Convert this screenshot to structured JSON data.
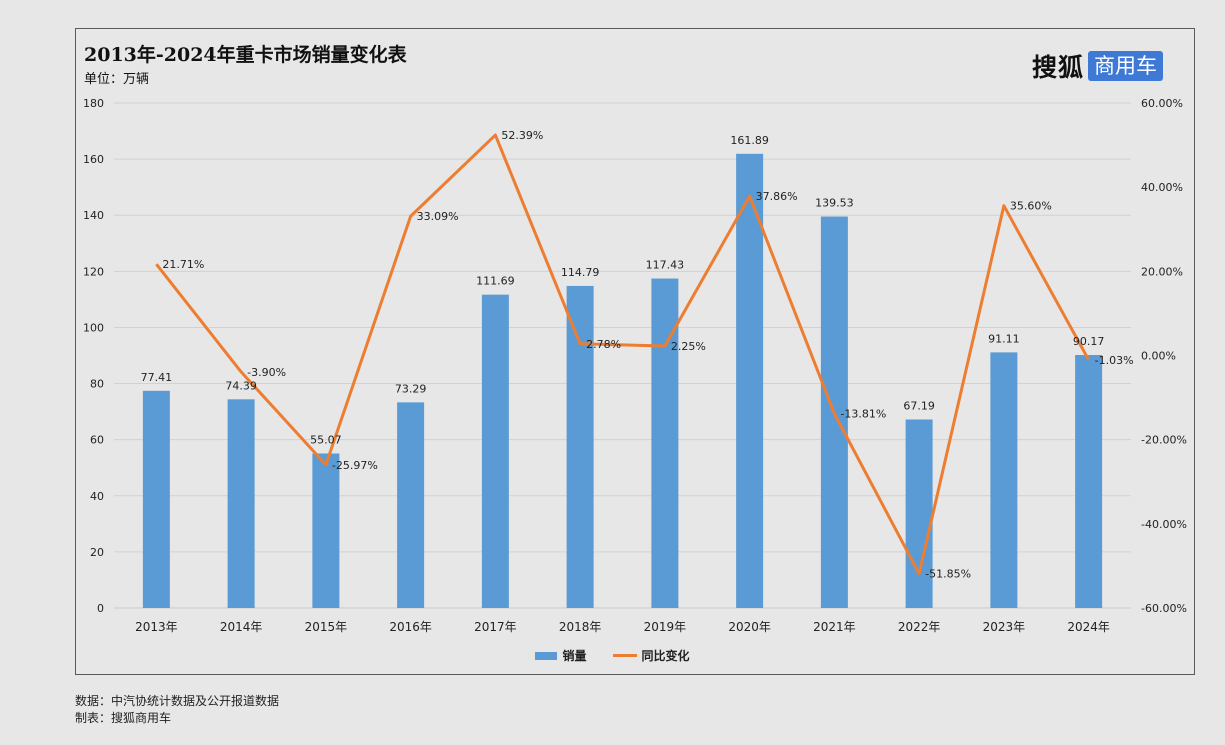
{
  "header": {
    "title": "2013年-2024年重卡市场销量变化表",
    "unit": "单位：万辆"
  },
  "logo": {
    "main": "搜狐",
    "box": "商用车"
  },
  "footer": {
    "source": "数据：中汽协统计数据及公开报道数据",
    "maker": "制表：搜狐商用车"
  },
  "chart_data": {
    "type": "bar",
    "categories": [
      "2013年",
      "2014年",
      "2015年",
      "2016年",
      "2017年",
      "2018年",
      "2019年",
      "2020年",
      "2021年",
      "2022年",
      "2023年",
      "2024年"
    ],
    "series": [
      {
        "name": "销量",
        "type": "bar",
        "axis": "left",
        "color": "#5b9bd5",
        "values": [
          77.41,
          74.39,
          55.07,
          73.29,
          111.69,
          114.79,
          117.43,
          161.89,
          139.53,
          67.19,
          91.11,
          90.17
        ],
        "labels": [
          "77.41",
          "74.39",
          "55.07",
          "73.29",
          "111.69",
          "114.79",
          "117.43",
          "161.89",
          "139.53",
          "67.19",
          "91.11",
          "90.17"
        ]
      },
      {
        "name": "同比变化",
        "type": "line",
        "axis": "right",
        "color": "#ed7d31",
        "values": [
          21.71,
          -3.9,
          -25.97,
          33.09,
          52.39,
          2.78,
          2.25,
          37.86,
          -13.81,
          -51.85,
          35.6,
          -1.03
        ],
        "labels": [
          "21.71%",
          "-3.90%",
          "-25.97%",
          "33.09%",
          "52.39%",
          "2.78%",
          "2.25%",
          "37.86%",
          "-13.81%",
          "-51.85%",
          "35.60%",
          "-1.03%"
        ]
      }
    ],
    "ylim_left": [
      0,
      180
    ],
    "yticks_left": [
      "0",
      "20",
      "40",
      "60",
      "80",
      "100",
      "120",
      "140",
      "160",
      "180"
    ],
    "ylim_right": [
      -60,
      60
    ],
    "yticks_right": [
      "-60.00%",
      "-40.00%",
      "-20.00%",
      "0.00%",
      "20.00%",
      "40.00%",
      "60.00%"
    ],
    "grid": true,
    "legend": "bottom-center"
  }
}
